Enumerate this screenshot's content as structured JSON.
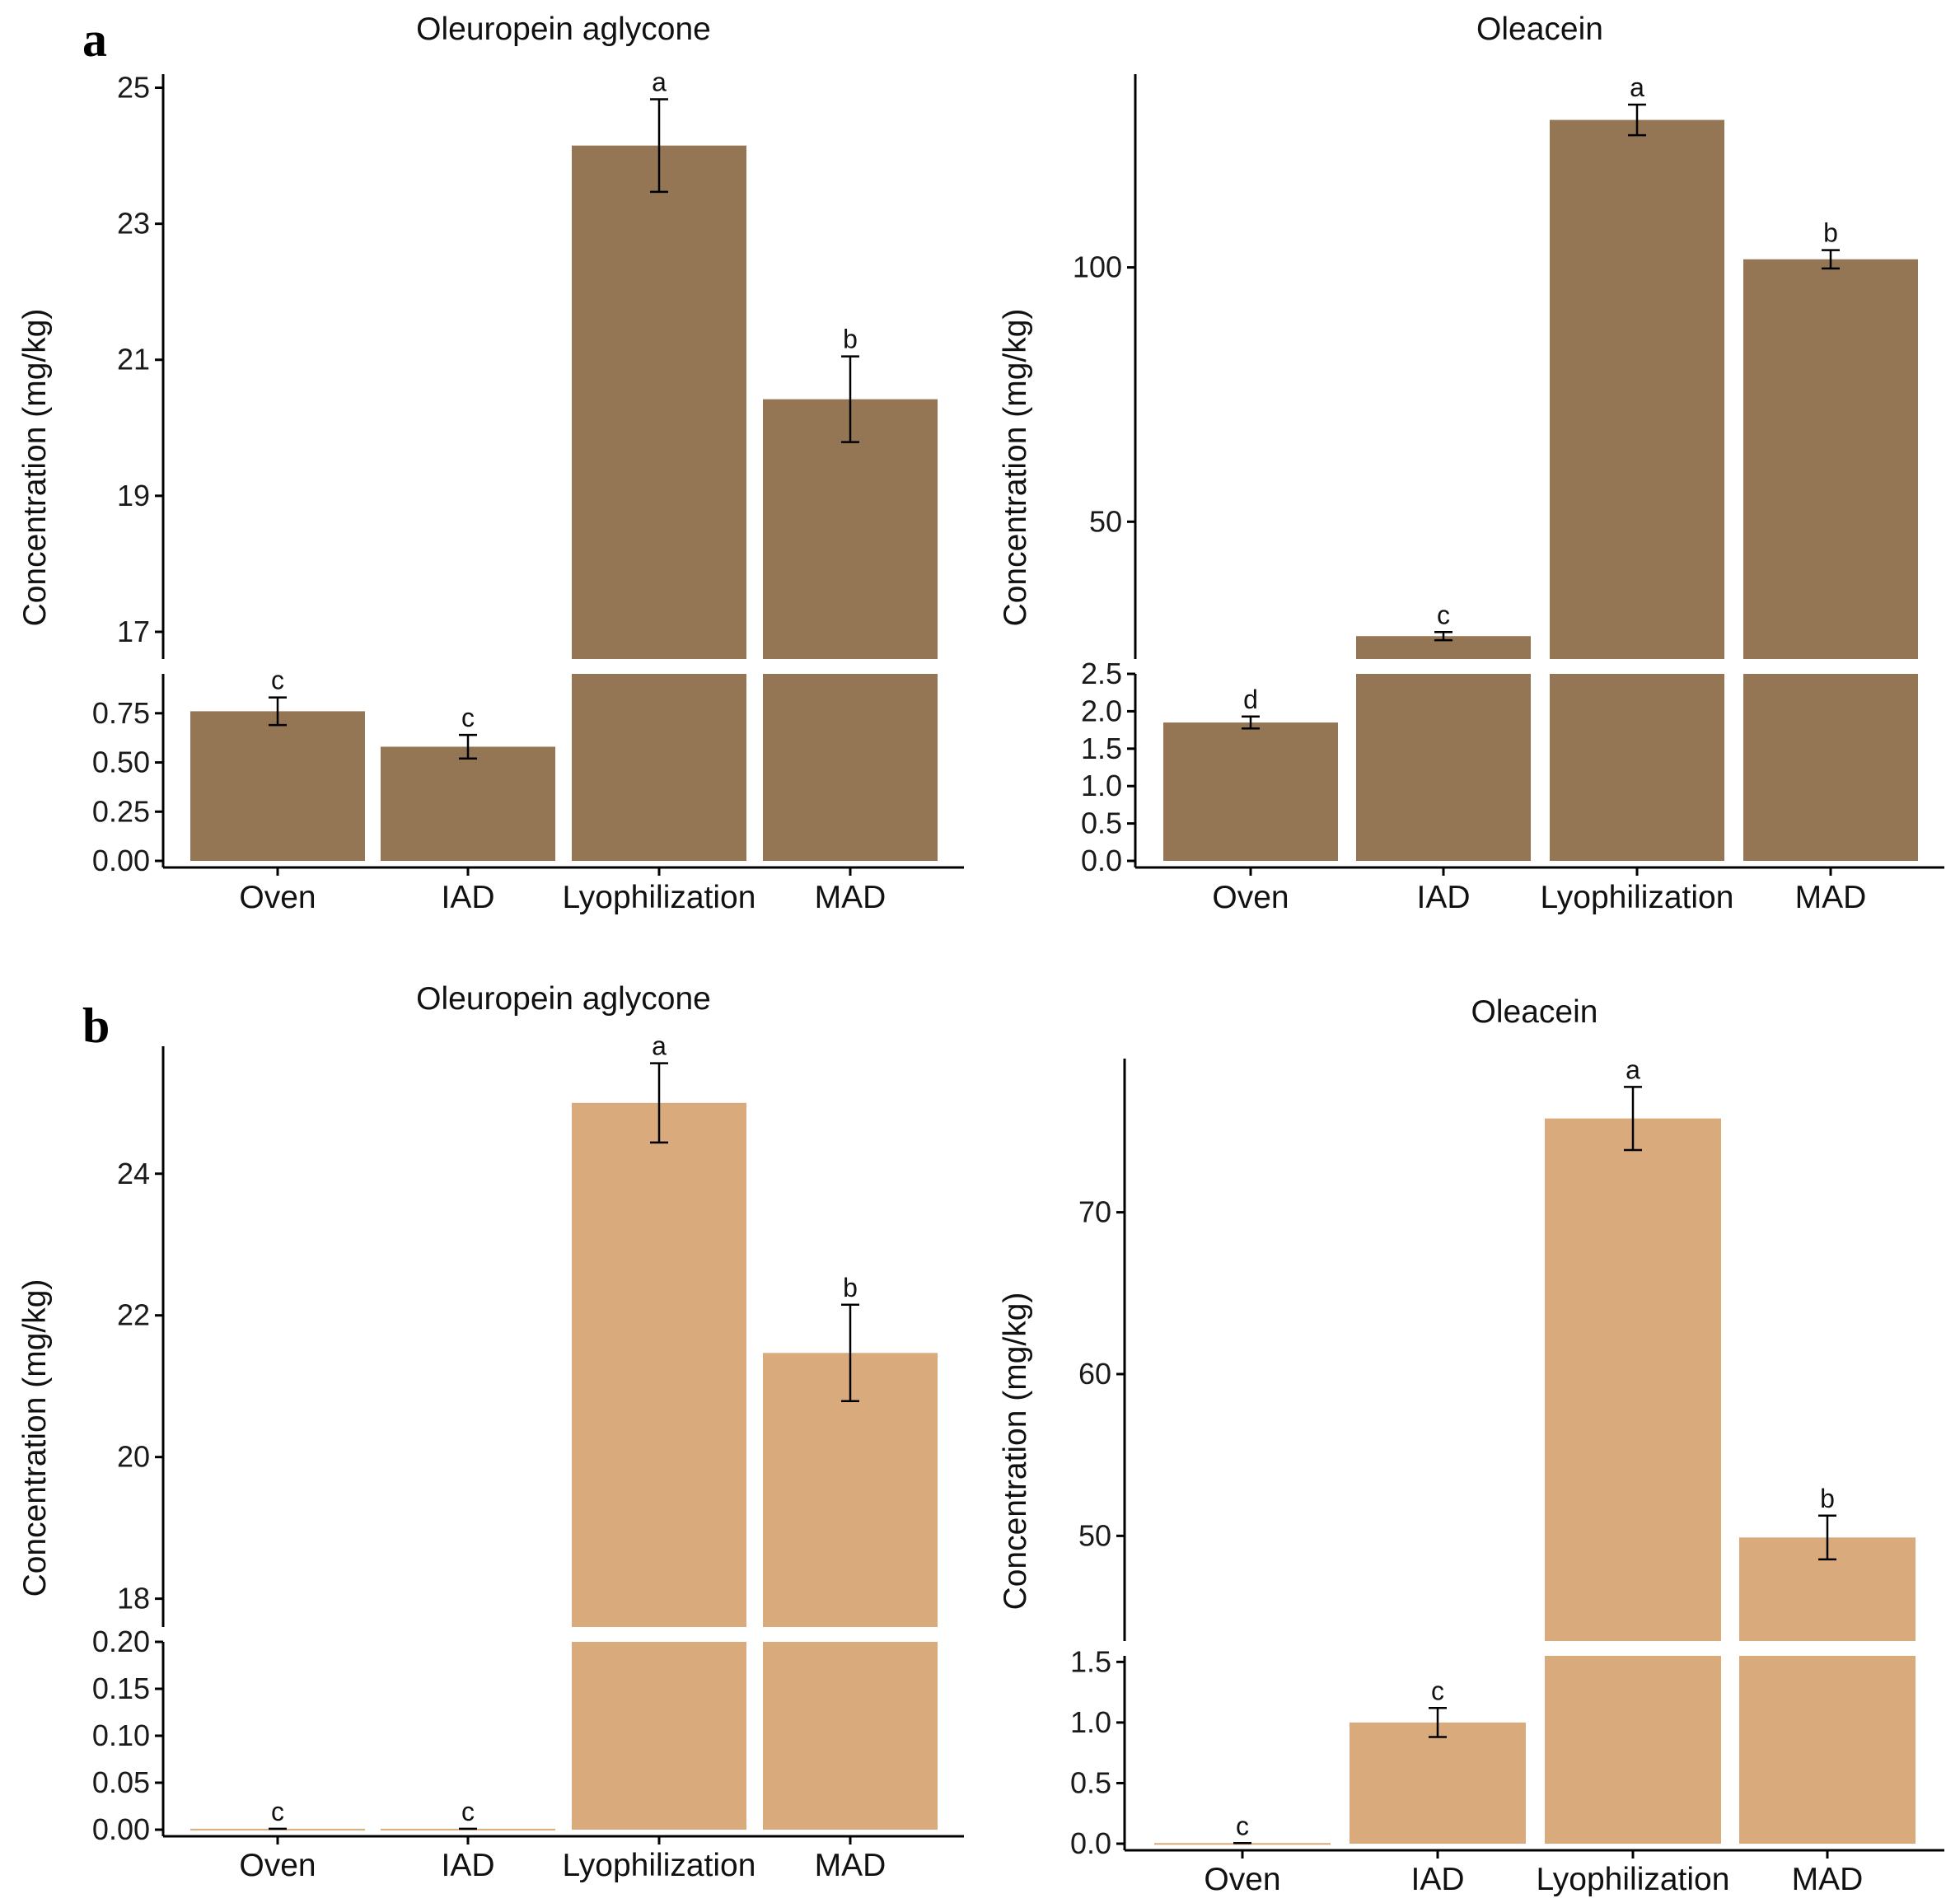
{
  "figure": {
    "panel_labels": [
      "a",
      "b"
    ],
    "colors": {
      "row_a": "#947554",
      "row_b": "#d8aa7c",
      "axis": "#000000",
      "error_bar": "#000000"
    }
  },
  "chart_data": [
    {
      "type": "bar",
      "panel": "a",
      "title": "Oleuropein aglycone",
      "ylabel": "Concentration (mg/kg)",
      "categories": [
        "Oven",
        "IAD",
        "Lyophilization",
        "MAD"
      ],
      "values": [
        0.76,
        0.58,
        24.15,
        20.42
      ],
      "errors": [
        0.07,
        0.06,
        0.68,
        0.63
      ],
      "significance": [
        "c",
        "c",
        "a",
        "b"
      ],
      "axis_break": true,
      "lower_segment": {
        "ylim": [
          0,
          0.95
        ],
        "ticks": [
          "0.00",
          "0.25",
          "0.50",
          "0.75"
        ]
      },
      "upper_segment": {
        "ylim": [
          16.6,
          25.2
        ],
        "ticks": [
          "17",
          "19",
          "21",
          "23",
          "25"
        ]
      }
    },
    {
      "type": "bar",
      "panel": "a",
      "title": "Oleacein",
      "ylabel": "Concentration (mg/kg)",
      "categories": [
        "Oven",
        "IAD",
        "Lyophilization",
        "MAD"
      ],
      "values": [
        1.85,
        27.5,
        129.0,
        101.6
      ],
      "errors": [
        0.08,
        0.8,
        3.0,
        1.8
      ],
      "significance": [
        "d",
        "c",
        "a",
        "b"
      ],
      "axis_break": true,
      "lower_segment": {
        "ylim": [
          0,
          2.5
        ],
        "ticks": [
          "0.0",
          "0.5",
          "1.0",
          "1.5",
          "2.0",
          "2.5"
        ]
      },
      "upper_segment": {
        "ylim": [
          23,
          138
        ],
        "ticks": [
          "50",
          "100"
        ]
      }
    },
    {
      "type": "bar",
      "panel": "b",
      "title": "Oleuropein aglycone",
      "ylabel": "Concentration (mg/kg)",
      "categories": [
        "Oven",
        "IAD",
        "Lyophilization",
        "MAD"
      ],
      "values": [
        0.001,
        0.001,
        25.0,
        21.47
      ],
      "errors": [
        0.0,
        0.0,
        0.56,
        0.68
      ],
      "significance": [
        "c",
        "c",
        "a",
        "b"
      ],
      "axis_break": true,
      "lower_segment": {
        "ylim": [
          0,
          0.2
        ],
        "ticks": [
          "0.00",
          "0.05",
          "0.10",
          "0.15",
          "0.20"
        ]
      },
      "upper_segment": {
        "ylim": [
          17.6,
          25.8
        ],
        "ticks": [
          "18",
          "20",
          "22",
          "24"
        ]
      }
    },
    {
      "type": "bar",
      "panel": "b",
      "title": "Oleacein",
      "ylabel": "Concentration (mg/kg)",
      "categories": [
        "Oven",
        "IAD",
        "Lyophilization",
        "MAD"
      ],
      "values": [
        0.005,
        1.0,
        75.8,
        49.9
      ],
      "errors": [
        0.0,
        0.12,
        1.95,
        1.35
      ],
      "significance": [
        "c",
        "c",
        "a",
        "b"
      ],
      "axis_break": true,
      "lower_segment": {
        "ylim": [
          0,
          1.55
        ],
        "ticks": [
          "0.0",
          "0.5",
          "1.0",
          "1.5"
        ]
      },
      "upper_segment": {
        "ylim": [
          43.5,
          79.5
        ],
        "ticks": [
          "50",
          "60",
          "70"
        ]
      }
    }
  ]
}
